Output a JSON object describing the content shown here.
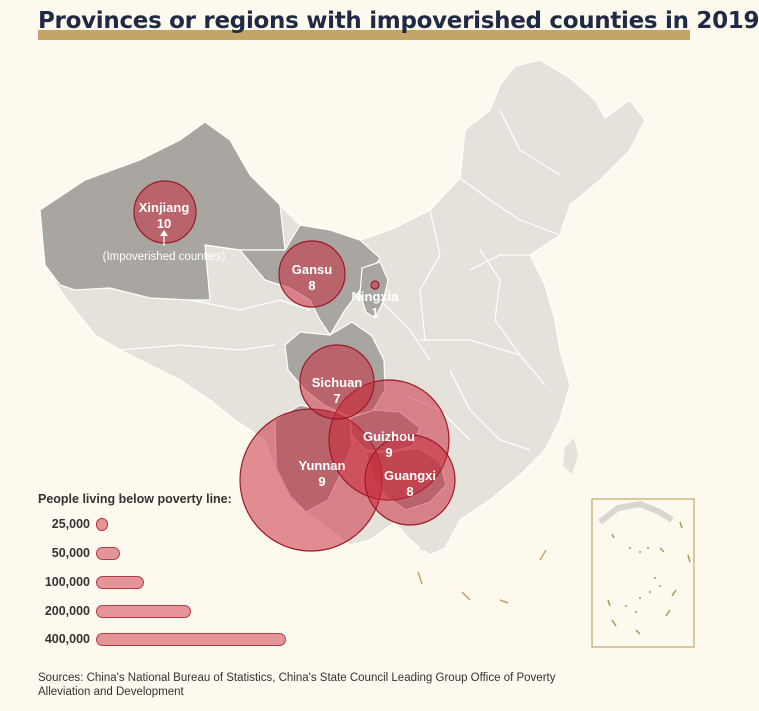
{
  "title": "Provinces or regions with impoverished counties in 2019",
  "annotation": "(Impoverished counties)",
  "regions": [
    {
      "name": "Xinjiang",
      "counties": "10"
    },
    {
      "name": "Gansu",
      "counties": "8"
    },
    {
      "name": "Ningxia",
      "counties": "1"
    },
    {
      "name": "Sichuan",
      "counties": "7"
    },
    {
      "name": "Guizhou",
      "counties": "9"
    },
    {
      "name": "Yunnan",
      "counties": "9"
    },
    {
      "name": "Guangxi",
      "counties": "8"
    }
  ],
  "legend": {
    "title": "People living below poverty line:",
    "items": [
      {
        "label": "25,000",
        "value": 25000
      },
      {
        "label": "50,000",
        "value": 50000
      },
      {
        "label": "100,000",
        "value": 100000
      },
      {
        "label": "200,000",
        "value": 200000
      },
      {
        "label": "400,000",
        "value": 400000
      }
    ]
  },
  "sources": "Sources: China's National Bureau of Statistics, China's State Council Leading Group Office of Poverty Alleviation and Development",
  "colors": {
    "background": "#fdf9ee",
    "map_fill": "#e5e2db",
    "highlight_fill": "#a9a6a1",
    "bubble_fill": "#c8283a",
    "bubble_stroke": "#9a1a28",
    "title_bar": "#c3a667",
    "title_text": "#1f2a44"
  }
}
